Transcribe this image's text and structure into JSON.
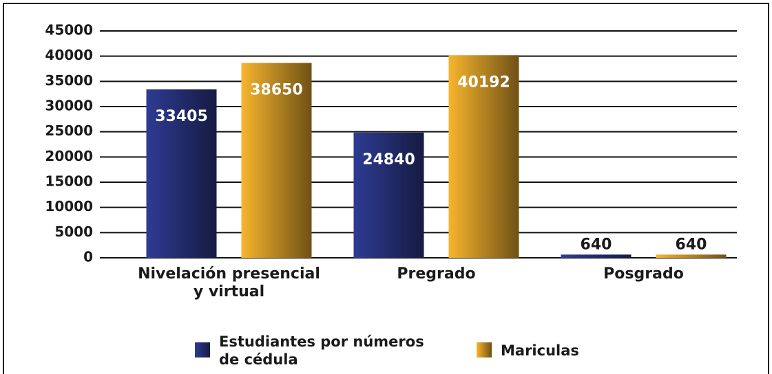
{
  "chart_data": {
    "type": "bar",
    "categories": [
      "Nivelación presencial\ny virtual",
      "Pregrado",
      "Posgrado"
    ],
    "series": [
      {
        "name": "Estudiantes por números\nde cédula",
        "color": "#2e3b93",
        "values": [
          33405,
          24840,
          640
        ]
      },
      {
        "name": "Mariculas",
        "color": "#f7b52e",
        "values": [
          38650,
          40192,
          640
        ]
      }
    ],
    "ylim": [
      0,
      45000
    ],
    "yticks": [
      0,
      5000,
      10000,
      15000,
      20000,
      25000,
      30000,
      35000,
      40000,
      45000
    ],
    "grid": true
  }
}
